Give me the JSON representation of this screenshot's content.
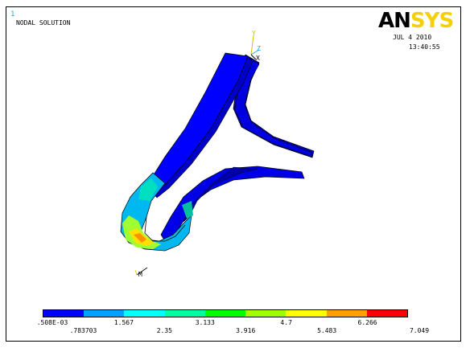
{
  "window_number": "1",
  "plot_title": "NODAL SOLUTION",
  "logo": {
    "an": "AN",
    "sys": "SYS"
  },
  "date": "JUL  4 2010",
  "time": "13:40:55",
  "axis_triad": {
    "y": "Y",
    "z": "Z",
    "x": "X"
  },
  "small_triad_label": "M",
  "legend": {
    "colors": [
      "#0000ff",
      "#00a0ff",
      "#00ffff",
      "#00ffa0",
      "#00ff00",
      "#a0ff00",
      "#ffff00",
      "#ffa000",
      "#ff0000"
    ],
    "labels_top": [
      ".508E-03",
      "1.567",
      "3.133",
      "4.7",
      "6.266"
    ],
    "labels_bottom": [
      ".783703",
      "2.35",
      "3.916",
      "5.483",
      "7.049"
    ]
  }
}
